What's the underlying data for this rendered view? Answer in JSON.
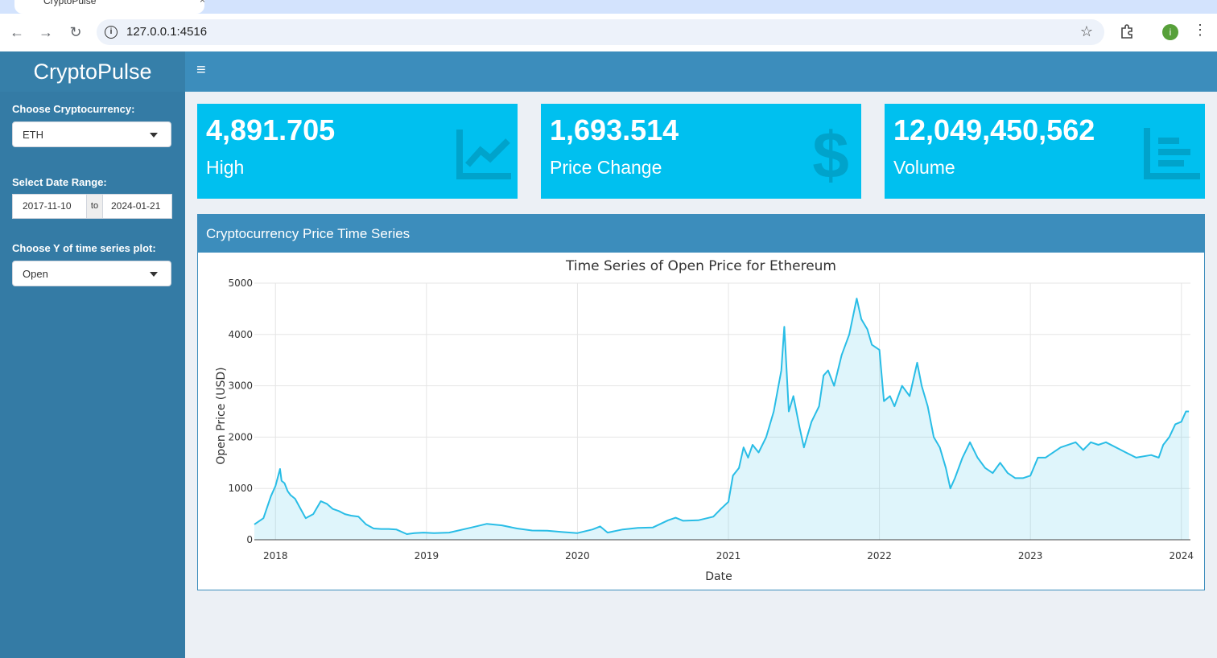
{
  "browser": {
    "tab_title": "CryptoPulse",
    "url": "127.0.0.1:4516",
    "profile_initial": "i"
  },
  "app": {
    "logo": "CryptoPulse"
  },
  "sidebar": {
    "crypto_label": "Choose Cryptocurrency:",
    "crypto_value": "ETH",
    "date_label": "Select Date Range:",
    "date_start": "2017-11-10",
    "date_sep": "to",
    "date_end": "2024-01-21",
    "y_label": "Choose Y of time series plot:",
    "y_value": "Open"
  },
  "value_boxes": [
    {
      "value": "4,891.705",
      "label": "High",
      "icon": "line-chart-icon"
    },
    {
      "value": "1,693.514",
      "label": "Price Change",
      "icon": "dollar-icon"
    },
    {
      "value": "12,049,450,562",
      "label": "Volume",
      "icon": "bar-list-icon"
    }
  ],
  "panel": {
    "title": "Cryptocurrency Price Time Series"
  },
  "chart_data": {
    "type": "line",
    "title": "Time Series of Open Price for Ethereum",
    "xlabel": "Date",
    "ylabel": "Open Price (USD)",
    "xlim": [
      2017.86,
      2024.06
    ],
    "ylim": [
      0,
      5000
    ],
    "x_ticks": [
      "2018",
      "2019",
      "2020",
      "2021",
      "2022",
      "2023",
      "2024"
    ],
    "y_ticks": [
      "0",
      "1000",
      "2000",
      "3000",
      "4000",
      "5000"
    ],
    "grid": true,
    "color": "#29bde6",
    "series": [
      {
        "x": [
          2017.86,
          2017.92,
          2017.97,
          2018.0,
          2018.03,
          2018.04,
          2018.06,
          2018.08,
          2018.1,
          2018.13,
          2018.17,
          2018.2,
          2018.25,
          2018.3,
          2018.34,
          2018.38,
          2018.42,
          2018.46,
          2018.5,
          2018.55,
          2018.6,
          2018.65,
          2018.7,
          2018.75,
          2018.8,
          2018.87,
          2018.92,
          2018.98,
          2019.05,
          2019.15,
          2019.3,
          2019.4,
          2019.5,
          2019.6,
          2019.7,
          2019.8,
          2019.9,
          2020.0,
          2020.1,
          2020.15,
          2020.2,
          2020.3,
          2020.4,
          2020.5,
          2020.6,
          2020.65,
          2020.7,
          2020.8,
          2020.9,
          2020.95,
          2021.0,
          2021.03,
          2021.07,
          2021.1,
          2021.13,
          2021.16,
          2021.2,
          2021.25,
          2021.3,
          2021.35,
          2021.37,
          2021.4,
          2021.43,
          2021.47,
          2021.5,
          2021.55,
          2021.6,
          2021.63,
          2021.66,
          2021.7,
          2021.75,
          2021.8,
          2021.85,
          2021.88,
          2021.92,
          2021.95,
          2022.0,
          2022.03,
          2022.07,
          2022.1,
          2022.15,
          2022.2,
          2022.25,
          2022.28,
          2022.32,
          2022.36,
          2022.4,
          2022.44,
          2022.47,
          2022.5,
          2022.55,
          2022.6,
          2022.65,
          2022.7,
          2022.75,
          2022.8,
          2022.85,
          2022.9,
          2022.95,
          2023.0,
          2023.05,
          2023.1,
          2023.2,
          2023.3,
          2023.35,
          2023.4,
          2023.45,
          2023.5,
          2023.6,
          2023.7,
          2023.8,
          2023.85,
          2023.88,
          2023.92,
          2023.96,
          2024.0,
          2024.03,
          2024.05
        ],
        "values": [
          300,
          420,
          850,
          1050,
          1380,
          1150,
          1100,
          950,
          870,
          800,
          580,
          420,
          500,
          750,
          700,
          600,
          560,
          500,
          470,
          450,
          300,
          220,
          210,
          210,
          200,
          110,
          130,
          140,
          130,
          140,
          240,
          310,
          280,
          220,
          180,
          175,
          150,
          130,
          200,
          260,
          140,
          200,
          230,
          240,
          380,
          430,
          370,
          380,
          450,
          600,
          740,
          1250,
          1400,
          1800,
          1600,
          1850,
          1700,
          2000,
          2500,
          3300,
          4150,
          2500,
          2800,
          2200,
          1800,
          2300,
          2600,
          3200,
          3300,
          3000,
          3600,
          4000,
          4700,
          4300,
          4100,
          3800,
          3700,
          2700,
          2800,
          2600,
          3000,
          2800,
          3450,
          3000,
          2600,
          2000,
          1800,
          1400,
          1000,
          1200,
          1600,
          1900,
          1600,
          1400,
          1300,
          1500,
          1300,
          1200,
          1200,
          1250,
          1600,
          1600,
          1800,
          1900,
          1750,
          1900,
          1850,
          1900,
          1750,
          1600,
          1650,
          1600,
          1850,
          2000,
          2250,
          2300,
          2500,
          2500
        ]
      }
    ]
  }
}
